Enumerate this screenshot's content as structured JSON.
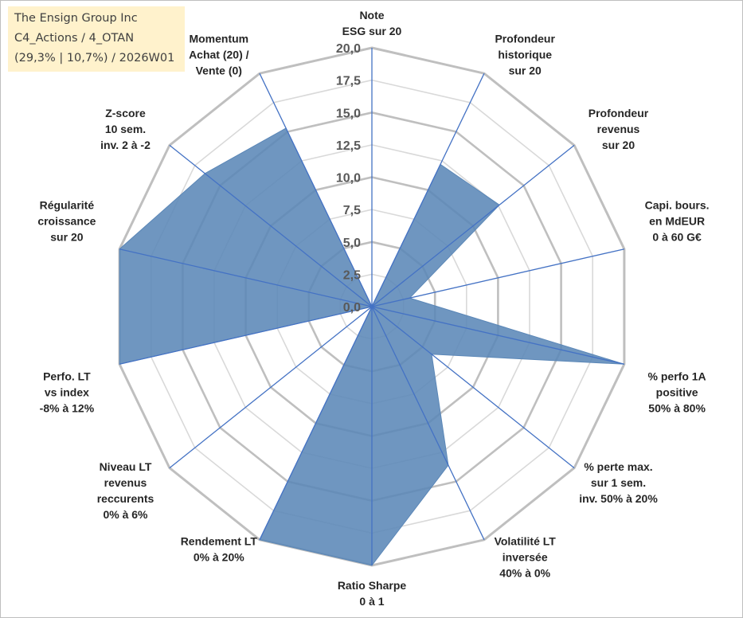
{
  "info_box": {
    "line1": "The Ensign Group Inc",
    "line2": "C4_Actions / 4_OTAN",
    "line3": "(29,3% | 10,7%) / 2026W01"
  },
  "colors": {
    "fill": "#5b87b7",
    "stroke": "#4472c4",
    "grid_major": "#bfbfbf",
    "grid_minor": "#d9d9d9",
    "info_bg": "#fff2cc"
  },
  "chart_data": {
    "type": "radar",
    "rmax": 20,
    "tick_step": 2.5,
    "tick_labels": [
      "0,0",
      "2,5",
      "5,0",
      "7,5",
      "10,0",
      "12,5",
      "15,0",
      "17,5",
      "20,0"
    ],
    "axes": [
      [
        "Note",
        "ESG sur 20"
      ],
      [
        "Profondeur",
        "historique",
        "sur 20"
      ],
      [
        "Profondeur",
        "revenus",
        "sur 20"
      ],
      [
        "Capi. bours.",
        "en MdEUR",
        "0 à 60 G€"
      ],
      [
        "% perfo 1A",
        "positive",
        "50% à 80%"
      ],
      [
        "% perte max.",
        "sur 1 sem.",
        "inv. 50% à 20%"
      ],
      [
        "Volatilité LT",
        "inversée",
        "40% à 0%"
      ],
      [
        "Ratio Sharpe",
        "0 à 1"
      ],
      [
        "Rendement LT",
        "0% à 20%"
      ],
      [
        "Niveau LT",
        "revenus",
        "reccurents",
        "0% à 6%"
      ],
      [
        "Perfo. LT",
        "vs index",
        "-8% à 12%"
      ],
      [
        "Régularité",
        "croissance",
        "sur 20"
      ],
      [
        "Z-score",
        "10 sem.",
        "inv. 2 à -2"
      ],
      [
        "Momentum",
        "Achat (20) /",
        "Vente (0)"
      ]
    ],
    "values": [
      0,
      12.2,
      12.6,
      3.0,
      20,
      5.9,
      13.6,
      20,
      20,
      0,
      20,
      20,
      16.5,
      15.3
    ]
  }
}
